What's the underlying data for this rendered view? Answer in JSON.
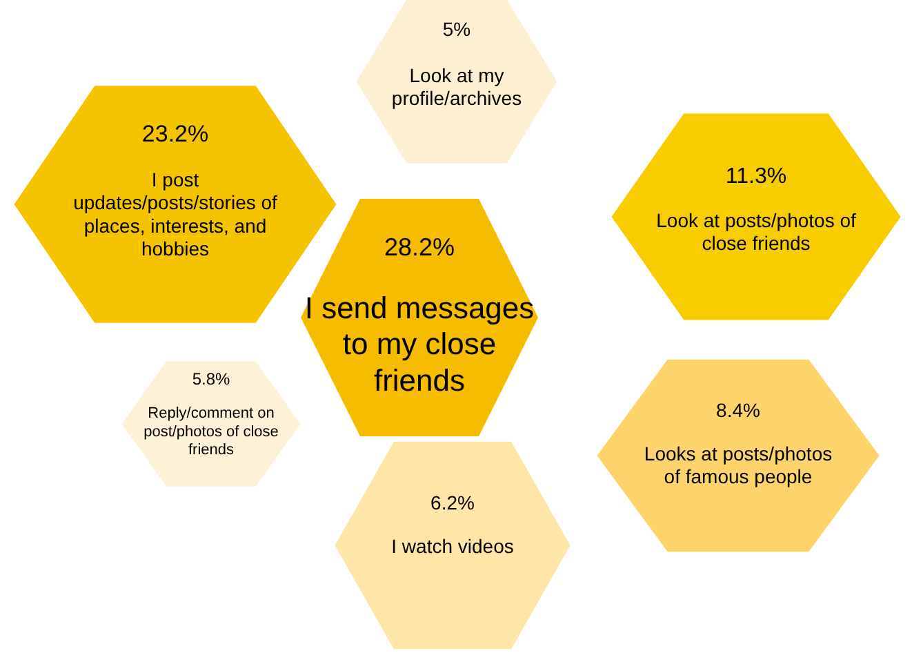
{
  "chart_data": {
    "type": "other",
    "categories": [
      "Look at my profile/archives",
      "I post updates/posts/stories of places, interests, and hobbies",
      "Look at posts/photos of close friends",
      "I send messages to my close friends",
      "Reply/comment on post/photos of close friends",
      "Looks at posts/photos of famous people",
      "I watch videos"
    ],
    "values": [
      5,
      23.2,
      11.3,
      28.2,
      5.8,
      8.4,
      6.2
    ],
    "value_labels": [
      "5%",
      "23.2%",
      "11.3%",
      "28.2%",
      "5.8%",
      "8.4%",
      "6.2%"
    ],
    "colors": [
      "#fdf0d2",
      "#f4c400",
      "#f7cd00",
      "#f5bc00",
      "#fdf1d8",
      "#fcd46b",
      "#fde6a8"
    ]
  }
}
